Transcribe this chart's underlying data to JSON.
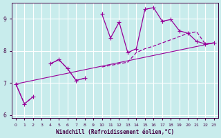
{
  "xlabel": "Windchill (Refroidissement éolien,°C)",
  "background_color": "#c8ecec",
  "grid_color": "#ffffff",
  "line_color": "#990099",
  "x_values": [
    0,
    1,
    2,
    3,
    4,
    5,
    6,
    7,
    8,
    9,
    10,
    11,
    12,
    13,
    14,
    15,
    16,
    17,
    18,
    19,
    20,
    21,
    22,
    23
  ],
  "y_main": [
    6.97,
    6.35,
    6.57,
    null,
    7.6,
    7.73,
    7.45,
    7.08,
    7.15,
    null,
    9.15,
    8.4,
    8.9,
    7.95,
    8.07,
    9.3,
    9.35,
    8.93,
    8.98,
    8.63,
    8.55,
    8.3,
    8.22,
    8.25
  ],
  "y_smooth": [
    6.97,
    6.35,
    6.57,
    null,
    7.6,
    7.73,
    7.45,
    7.08,
    7.15,
    null,
    7.5,
    7.55,
    7.6,
    7.65,
    7.95,
    8.07,
    8.15,
    8.25,
    8.35,
    8.45,
    8.55,
    8.6,
    8.22,
    8.25
  ],
  "y_trend_x": [
    0,
    23
  ],
  "y_trend_y": [
    6.97,
    8.25
  ],
  "ylim": [
    5.9,
    9.5
  ],
  "yticks": [
    6,
    7,
    8,
    9
  ],
  "xlim": [
    -0.5,
    23.5
  ]
}
